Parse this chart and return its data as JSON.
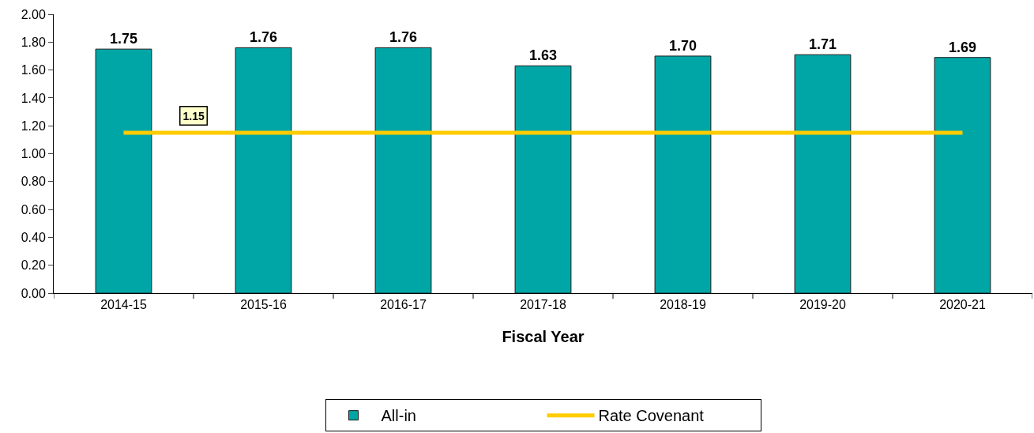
{
  "chart_data": {
    "type": "bar",
    "xlabel": "Fiscal Year",
    "categories": [
      "2014-15",
      "2015-16",
      "2016-17",
      "2017-18",
      "2018-19",
      "2019-20",
      "2020-21"
    ],
    "series": [
      {
        "name": "All-in",
        "color": "#00a6a6",
        "values": [
          1.75,
          1.76,
          1.76,
          1.63,
          1.7,
          1.71,
          1.69
        ],
        "value_labels": [
          "1.75",
          "1.76",
          "1.76",
          "1.63",
          "1.70",
          "1.71",
          "1.69"
        ]
      },
      {
        "name": "Rate Covenant",
        "type": "line",
        "color": "#ffcc00",
        "values": [
          1.15,
          1.15,
          1.15,
          1.15,
          1.15,
          1.15,
          1.15
        ]
      }
    ],
    "annotations": [
      {
        "text": "1.15",
        "y": 1.15
      }
    ],
    "ylim": [
      0,
      2
    ],
    "yticks": [
      {
        "value": 0,
        "label": "0.00"
      },
      {
        "value": 0.2,
        "label": "0.20"
      },
      {
        "value": 0.4,
        "label": "0.40"
      },
      {
        "value": 0.6,
        "label": "0.60"
      },
      {
        "value": 0.8,
        "label": "0.80"
      },
      {
        "value": 1.0,
        "label": "1.00"
      },
      {
        "value": 1.2,
        "label": "1.20"
      },
      {
        "value": 1.4,
        "label": "1.40"
      },
      {
        "value": 1.6,
        "label": "1.60"
      },
      {
        "value": 1.8,
        "label": "1.80"
      },
      {
        "value": 2.0,
        "label": "2.00"
      }
    ],
    "legend": "bottom",
    "marker": "none",
    "line_style": "solid"
  }
}
